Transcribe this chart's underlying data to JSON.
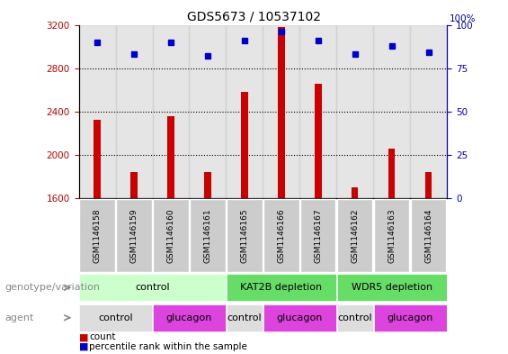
{
  "title": "GDS5673 / 10537102",
  "samples": [
    "GSM1146158",
    "GSM1146159",
    "GSM1146160",
    "GSM1146161",
    "GSM1146165",
    "GSM1146166",
    "GSM1146167",
    "GSM1146162",
    "GSM1146163",
    "GSM1146164"
  ],
  "counts": [
    2320,
    1840,
    2360,
    1840,
    2580,
    3180,
    2660,
    1700,
    2060,
    1840
  ],
  "percentiles": [
    90,
    83,
    90,
    82,
    91,
    96,
    91,
    83,
    88,
    84
  ],
  "ylim_left": [
    1600,
    3200
  ],
  "ylim_right": [
    0,
    100
  ],
  "yticks_left": [
    1600,
    2000,
    2400,
    2800,
    3200
  ],
  "yticks_right": [
    0,
    25,
    50,
    75,
    100
  ],
  "bar_color": "#cc0000",
  "dot_color": "#0000cc",
  "sample_bg_color": "#cccccc",
  "genotype_groups": [
    {
      "label": "control",
      "start": 0,
      "end": 4,
      "color": "#ccffcc"
    },
    {
      "label": "KAT2B depletion",
      "start": 4,
      "end": 7,
      "color": "#66dd66"
    },
    {
      "label": "WDR5 depletion",
      "start": 7,
      "end": 10,
      "color": "#66dd66"
    }
  ],
  "agent_groups": [
    {
      "label": "control",
      "start": 0,
      "end": 2,
      "color": "#dddddd"
    },
    {
      "label": "glucagon",
      "start": 2,
      "end": 4,
      "color": "#dd44dd"
    },
    {
      "label": "control",
      "start": 4,
      "end": 5,
      "color": "#dddddd"
    },
    {
      "label": "glucagon",
      "start": 5,
      "end": 7,
      "color": "#dd44dd"
    },
    {
      "label": "control",
      "start": 7,
      "end": 8,
      "color": "#dddddd"
    },
    {
      "label": "glucagon",
      "start": 8,
      "end": 10,
      "color": "#dd44dd"
    }
  ],
  "genotype_label": "genotype/variation",
  "agent_label": "agent",
  "legend_count_label": "count",
  "legend_percentile_label": "percentile rank within the sample",
  "title_fontsize": 10,
  "tick_fontsize": 7.5,
  "label_fontsize": 8,
  "arrow_color": "#888888"
}
